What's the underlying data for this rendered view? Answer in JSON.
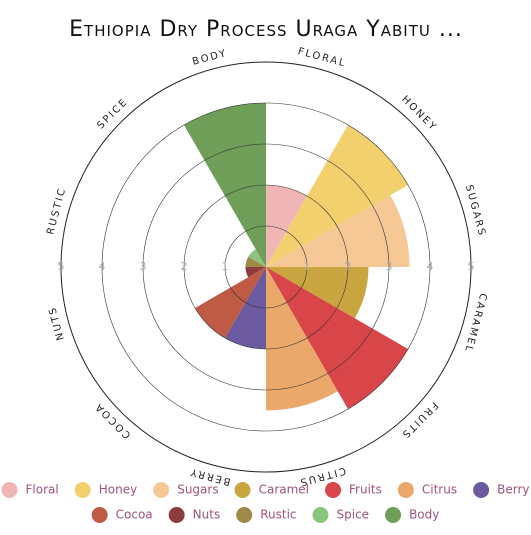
{
  "chart_data": {
    "type": "polar_area",
    "title": "Ethiopia Dry Process Uraga Yabitu ...",
    "categories": [
      "Floral",
      "Honey",
      "Sugars",
      "Caramel",
      "Fruits",
      "Citrus",
      "Berry",
      "Cocoa",
      "Nuts",
      "Rustic",
      "Spice",
      "Body"
    ],
    "values": [
      2,
      4,
      3.5,
      2.5,
      4,
      3.5,
      2,
      2,
      0.5,
      0.5,
      0.5,
      4
    ],
    "colors": [
      "#f0b6b6",
      "#f2d06e",
      "#f5c896",
      "#c9a53f",
      "#d9464a",
      "#eaa96a",
      "#6b5aa0",
      "#bf5a45",
      "#8c3c3c",
      "#a08a4a",
      "#8cc47e",
      "#6e9e58"
    ],
    "rlim": [
      0,
      5
    ],
    "rticks": [
      1,
      2,
      3,
      4,
      5
    ],
    "legend": "bottom"
  }
}
